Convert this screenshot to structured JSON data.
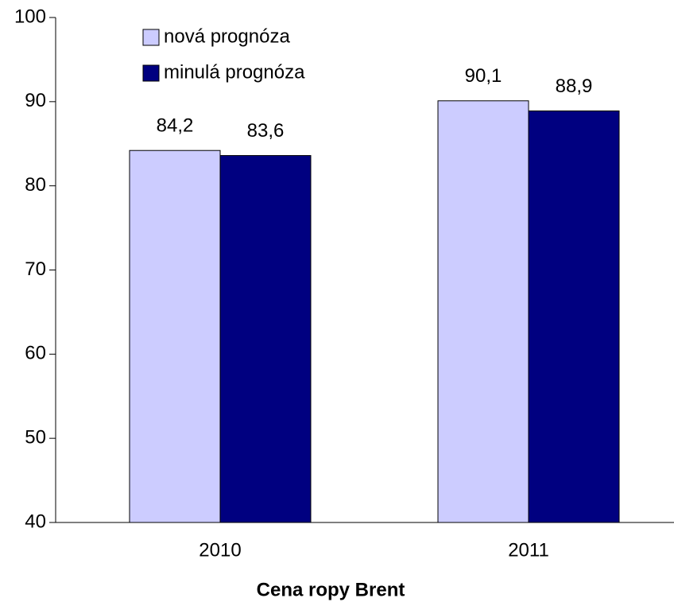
{
  "chart_data": {
    "type": "bar",
    "x_label": "Cena ropy Brent",
    "categories": [
      "2010",
      "2011"
    ],
    "series": [
      {
        "name": "nová prognóza",
        "color": "#ccccff",
        "values": [
          84.2,
          90.1
        ],
        "value_labels": [
          "84,2",
          "90,1"
        ]
      },
      {
        "name": "minulá prognóza",
        "color": "#000080",
        "values": [
          83.6,
          88.9
        ],
        "value_labels": [
          "83,6",
          "88,9"
        ]
      }
    ],
    "ylim": [
      40,
      100
    ],
    "yticks": [
      40,
      50,
      60,
      70,
      80,
      90,
      100
    ],
    "legend": "top-left"
  }
}
